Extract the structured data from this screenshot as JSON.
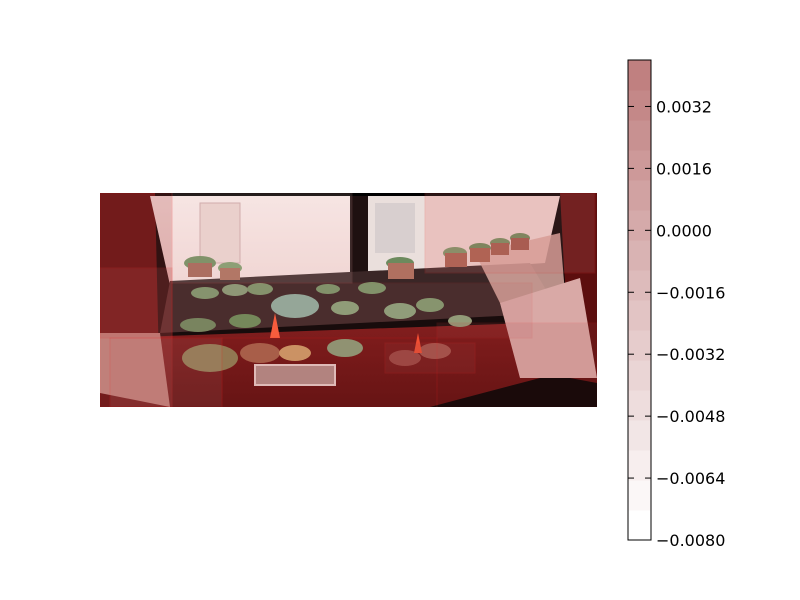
{
  "chart_data": {
    "type": "heatmap",
    "title": "",
    "xlabel": "",
    "ylabel": "",
    "background_image": "photo-of-succulent-plants-on-windowsill",
    "colormap": {
      "name": "red-overlay",
      "low_color": "#ffffff",
      "high_color": "#c08080",
      "vmin": -0.008,
      "vmax": 0.0044
    },
    "colorbar": {
      "levels": 16,
      "ticks": [
        -0.008,
        -0.0064,
        -0.0048,
        -0.0032,
        -0.0016,
        0.0,
        0.0016,
        0.0032
      ],
      "tick_labels": [
        "−0.0080",
        "−0.0064",
        "−0.0048",
        "−0.0032",
        "−0.0016",
        "0.0000",
        "0.0016",
        "0.0032"
      ]
    },
    "overlay_regions": [
      {
        "value": 0.004
      },
      {
        "value": 0.0036
      },
      {
        "value": 0.0012
      },
      {
        "value": -0.0032
      },
      {
        "value": 0.0008
      },
      {
        "value": -0.0016
      },
      {
        "value": 0.0024
      },
      {
        "value": -0.0048
      },
      {
        "value": 0.0028
      }
    ]
  }
}
